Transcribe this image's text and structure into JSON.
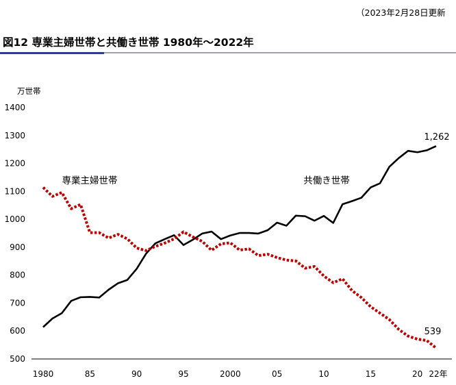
{
  "note": "（2023年2月28日更新",
  "title": "図12 専業主婦世帯と共働き世帯 1980年～2022年",
  "colors": {
    "dual_income": "#000000",
    "housewife": "#c00000",
    "title_rule": "#9ea3a9",
    "title_accent": "#2e3b8e"
  },
  "chart_data": {
    "type": "line",
    "title": "図12 専業主婦世帯と共働き世帯 1980年～2022年",
    "xlabel": "",
    "ylabel": "万世帯",
    "ylim": [
      500,
      1400
    ],
    "yticks": [
      500,
      600,
      700,
      800,
      900,
      1000,
      1100,
      1200,
      1300,
      1400
    ],
    "xlim": [
      1980,
      2022
    ],
    "xticks": [
      {
        "value": 1980,
        "label": "1980"
      },
      {
        "value": 1985,
        "label": "85"
      },
      {
        "value": 1990,
        "label": "90"
      },
      {
        "value": 1995,
        "label": "95"
      },
      {
        "value": 2000,
        "label": "2000"
      },
      {
        "value": 2005,
        "label": "05"
      },
      {
        "value": 2010,
        "label": "10"
      },
      {
        "value": 2015,
        "label": "15"
      },
      {
        "value": 2020,
        "label": "20"
      },
      {
        "value": 2022,
        "label": "22年"
      }
    ],
    "grid": false,
    "x": [
      1980,
      1981,
      1982,
      1983,
      1984,
      1985,
      1986,
      1987,
      1988,
      1989,
      1990,
      1991,
      1992,
      1993,
      1994,
      1995,
      1996,
      1997,
      1998,
      1999,
      2000,
      2001,
      2002,
      2003,
      2004,
      2005,
      2006,
      2007,
      2008,
      2009,
      2010,
      2011,
      2012,
      2013,
      2014,
      2015,
      2016,
      2017,
      2018,
      2019,
      2020,
      2021,
      2022
    ],
    "series": [
      {
        "name": "共働き世帯",
        "style": "solid",
        "values": [
          614,
          645,
          664,
          708,
          721,
          722,
          720,
          748,
          771,
          783,
          823,
          877,
          914,
          929,
          943,
          908,
          927,
          949,
          956,
          929,
          942,
          951,
          951,
          949,
          961,
          988,
          977,
          1013,
          1011,
          995,
          1012,
          987,
          1054,
          1065,
          1077,
          1114,
          1129,
          1188,
          1219,
          1245,
          1240,
          1247,
          1262
        ],
        "end_label": "1,262"
      },
      {
        "name": "専業主婦世帯",
        "style": "dotted",
        "values": [
          1114,
          1082,
          1096,
          1038,
          1053,
          952,
          952,
          933,
          946,
          930,
          897,
          888,
          903,
          915,
          930,
          955,
          937,
          921,
          889,
          912,
          916,
          890,
          894,
          870,
          875,
          863,
          854,
          851,
          825,
          831,
          797,
          773,
          787,
          745,
          720,
          687,
          664,
          641,
          606,
          582,
          571,
          566,
          539
        ],
        "end_label": "539"
      }
    ]
  }
}
